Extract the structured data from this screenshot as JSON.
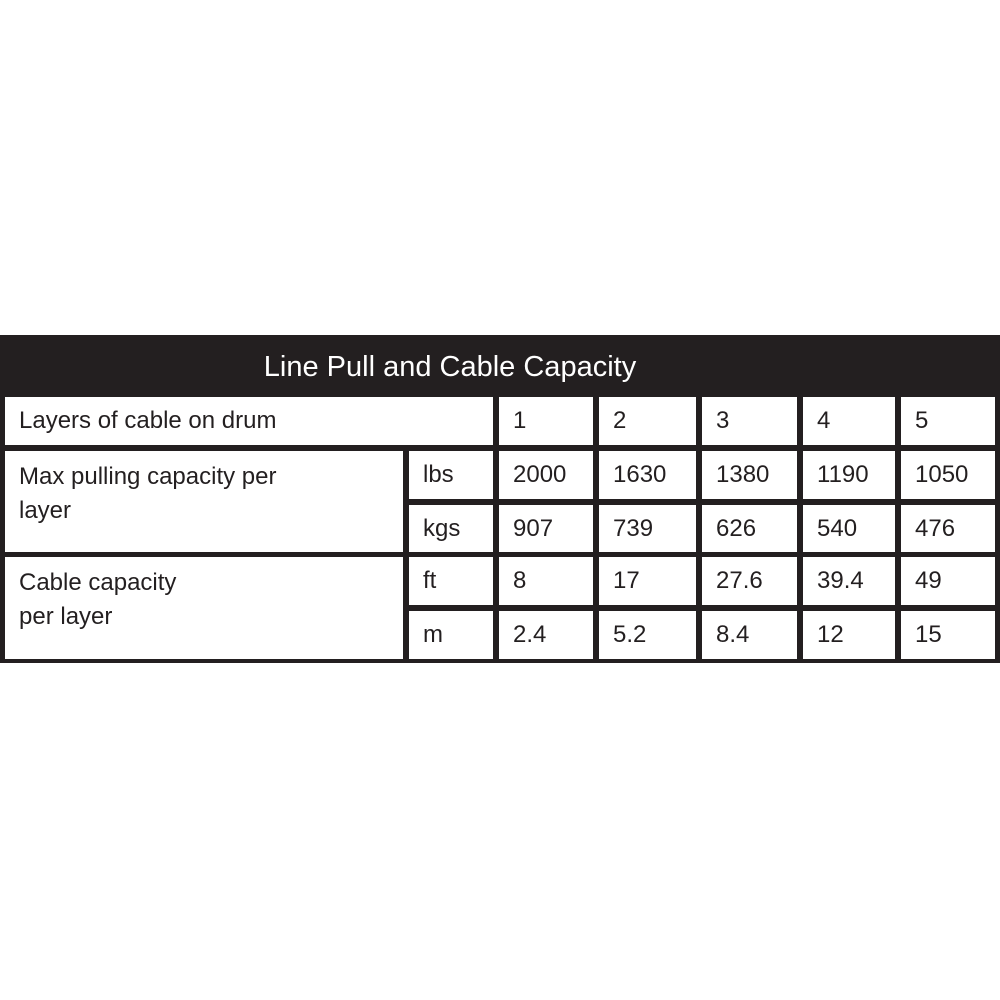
{
  "table": {
    "title": "Line Pull and Cable Capacity",
    "header_label": "Layers of cable on drum",
    "layers": [
      "1",
      "2",
      "3",
      "4",
      "5"
    ],
    "groups": [
      {
        "label": "Max pulling capacity per\nlayer",
        "rows": [
          {
            "unit": "lbs",
            "values": [
              "2000",
              "1630",
              "1380",
              "1190",
              "1050"
            ]
          },
          {
            "unit": "kgs",
            "values": [
              "907",
              "739",
              "626",
              "540",
              "476"
            ]
          }
        ]
      },
      {
        "label": "Cable capacity\n per layer",
        "rows": [
          {
            "unit": "ft",
            "values": [
              "8",
              "17",
              "27.6",
              "39.4",
              "49"
            ]
          },
          {
            "unit": "m",
            "values": [
              "2.4",
              "5.2",
              "8.4",
              "12",
              "15"
            ]
          }
        ]
      }
    ]
  }
}
